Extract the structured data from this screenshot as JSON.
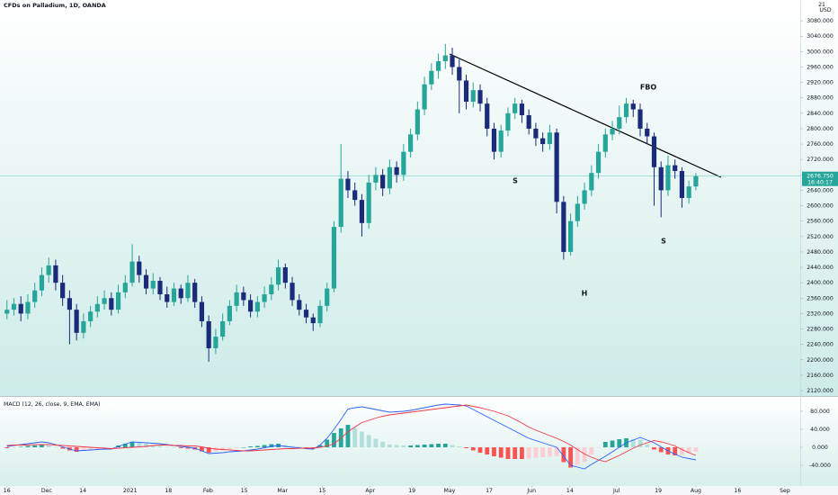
{
  "chart_data": {
    "type": "candlestick",
    "title": "CFDs on Palladium, 1D, OANDA",
    "currency": "USD",
    "currency_badge": "21",
    "up_color": "#26a69a",
    "down_color": "#1a2b7a",
    "ylim": [
      2106,
      3134
    ],
    "yticks": [
      {
        "value": 2120,
        "label": "2120.000"
      },
      {
        "value": 2160,
        "label": "2160.000"
      },
      {
        "value": 2200,
        "label": "2200.000"
      },
      {
        "value": 2240,
        "label": "2240.000"
      },
      {
        "value": 2280,
        "label": "2280.000"
      },
      {
        "value": 2320,
        "label": "2320.000"
      },
      {
        "value": 2360,
        "label": "2360.000"
      },
      {
        "value": 2400,
        "label": "2400.000"
      },
      {
        "value": 2440,
        "label": "2440.000"
      },
      {
        "value": 2480,
        "label": "2480.000"
      },
      {
        "value": 2520,
        "label": "2520.000"
      },
      {
        "value": 2560,
        "label": "2560.000"
      },
      {
        "value": 2600,
        "label": "2600.000"
      },
      {
        "value": 2640,
        "label": "2640.000"
      },
      {
        "value": 2680,
        "label": "2680.000"
      },
      {
        "value": 2720,
        "label": "2720.000"
      },
      {
        "value": 2760,
        "label": "2760.000"
      },
      {
        "value": 2800,
        "label": "2800.000"
      },
      {
        "value": 2840,
        "label": "2840.000"
      },
      {
        "value": 2880,
        "label": "2880.000"
      },
      {
        "value": 2920,
        "label": "2920.000"
      },
      {
        "value": 2960,
        "label": "2960.000"
      },
      {
        "value": 3000,
        "label": "3000.000"
      },
      {
        "value": 3040,
        "label": "3040.000"
      },
      {
        "value": 3080,
        "label": "3080.000"
      }
    ],
    "xlim": [
      -1,
      114
    ],
    "xticks": [
      {
        "value": 0,
        "label": "16"
      },
      {
        "value": 5.7,
        "label": "Dec"
      },
      {
        "value": 10.9,
        "label": "14"
      },
      {
        "value": 17.7,
        "label": "2021"
      },
      {
        "value": 23.2,
        "label": "18"
      },
      {
        "value": 28.9,
        "label": "Feb"
      },
      {
        "value": 34.1,
        "label": "15"
      },
      {
        "value": 39.6,
        "label": "Mar"
      },
      {
        "value": 45.3,
        "label": "15"
      },
      {
        "value": 52.2,
        "label": "Apr"
      },
      {
        "value": 58.2,
        "label": "19"
      },
      {
        "value": 63.6,
        "label": "May"
      },
      {
        "value": 69.3,
        "label": "17"
      },
      {
        "value": 75.4,
        "label": "Jun"
      },
      {
        "value": 80.9,
        "label": "14"
      },
      {
        "value": 87.6,
        "label": "Jul"
      },
      {
        "value": 93.6,
        "label": "19"
      },
      {
        "value": 99,
        "label": "Aug"
      },
      {
        "value": 105,
        "label": "16"
      },
      {
        "value": 111.8,
        "label": "Sep"
      }
    ],
    "last_price": {
      "value": 2676.75,
      "label": "2676.750"
    },
    "countdown": "16:40:17",
    "annotations": [
      "S",
      "H",
      "S",
      "FBO"
    ],
    "candles": [
      [
        2320,
        2355,
        2305,
        2330
      ],
      [
        2330,
        2360,
        2315,
        2345
      ],
      [
        2345,
        2365,
        2300,
        2320
      ],
      [
        2320,
        2370,
        2305,
        2350
      ],
      [
        2350,
        2400,
        2335,
        2380
      ],
      [
        2380,
        2440,
        2365,
        2420
      ],
      [
        2420,
        2465,
        2400,
        2445
      ],
      [
        2445,
        2460,
        2380,
        2400
      ],
      [
        2400,
        2420,
        2340,
        2360
      ],
      [
        2360,
        2380,
        2240,
        2330
      ],
      [
        2330,
        2345,
        2250,
        2270
      ],
      [
        2270,
        2320,
        2255,
        2300
      ],
      [
        2300,
        2340,
        2285,
        2325
      ],
      [
        2325,
        2365,
        2310,
        2345
      ],
      [
        2345,
        2380,
        2330,
        2360
      ],
      [
        2360,
        2375,
        2315,
        2330
      ],
      [
        2330,
        2395,
        2320,
        2375
      ],
      [
        2375,
        2420,
        2360,
        2400
      ],
      [
        2400,
        2500,
        2390,
        2455
      ],
      [
        2455,
        2470,
        2400,
        2420
      ],
      [
        2420,
        2435,
        2370,
        2385
      ],
      [
        2385,
        2425,
        2370,
        2405
      ],
      [
        2405,
        2415,
        2355,
        2370
      ],
      [
        2370,
        2390,
        2335,
        2350
      ],
      [
        2350,
        2400,
        2340,
        2385
      ],
      [
        2385,
        2395,
        2345,
        2360
      ],
      [
        2360,
        2420,
        2350,
        2400
      ],
      [
        2400,
        2410,
        2335,
        2350
      ],
      [
        2350,
        2365,
        2285,
        2300
      ],
      [
        2300,
        2315,
        2195,
        2230
      ],
      [
        2230,
        2280,
        2215,
        2260
      ],
      [
        2260,
        2320,
        2250,
        2300
      ],
      [
        2300,
        2355,
        2290,
        2340
      ],
      [
        2340,
        2395,
        2325,
        2375
      ],
      [
        2375,
        2390,
        2340,
        2355
      ],
      [
        2355,
        2370,
        2310,
        2325
      ],
      [
        2325,
        2365,
        2310,
        2350
      ],
      [
        2350,
        2390,
        2335,
        2370
      ],
      [
        2370,
        2415,
        2355,
        2395
      ],
      [
        2395,
        2460,
        2380,
        2440
      ],
      [
        2440,
        2450,
        2385,
        2400
      ],
      [
        2400,
        2415,
        2340,
        2355
      ],
      [
        2355,
        2370,
        2315,
        2330
      ],
      [
        2330,
        2345,
        2295,
        2310
      ],
      [
        2310,
        2320,
        2275,
        2295
      ],
      [
        2295,
        2355,
        2285,
        2340
      ],
      [
        2340,
        2400,
        2325,
        2385
      ],
      [
        2385,
        2560,
        2375,
        2545
      ],
      [
        2545,
        2760,
        2530,
        2670
      ],
      [
        2670,
        2690,
        2620,
        2640
      ],
      [
        2640,
        2660,
        2600,
        2615
      ],
      [
        2615,
        2630,
        2520,
        2555
      ],
      [
        2555,
        2680,
        2540,
        2660
      ],
      [
        2660,
        2700,
        2640,
        2680
      ],
      [
        2680,
        2695,
        2625,
        2645
      ],
      [
        2645,
        2720,
        2630,
        2700
      ],
      [
        2700,
        2715,
        2660,
        2680
      ],
      [
        2680,
        2760,
        2665,
        2740
      ],
      [
        2740,
        2800,
        2725,
        2785
      ],
      [
        2785,
        2870,
        2770,
        2850
      ],
      [
        2850,
        2935,
        2835,
        2915
      ],
      [
        2915,
        2970,
        2900,
        2950
      ],
      [
        2950,
        2995,
        2930,
        2975
      ],
      [
        2975,
        3020,
        2955,
        2990
      ],
      [
        2990,
        3010,
        2940,
        2960
      ],
      [
        2960,
        2980,
        2840,
        2925
      ],
      [
        2925,
        2940,
        2850,
        2870
      ],
      [
        2870,
        2920,
        2855,
        2900
      ],
      [
        2900,
        2915,
        2845,
        2865
      ],
      [
        2865,
        2880,
        2780,
        2800
      ],
      [
        2800,
        2815,
        2720,
        2740
      ],
      [
        2740,
        2810,
        2725,
        2795
      ],
      [
        2795,
        2855,
        2780,
        2840
      ],
      [
        2840,
        2880,
        2825,
        2865
      ],
      [
        2865,
        2875,
        2815,
        2835
      ],
      [
        2835,
        2850,
        2785,
        2800
      ],
      [
        2800,
        2815,
        2755,
        2775
      ],
      [
        2775,
        2790,
        2740,
        2760
      ],
      [
        2760,
        2810,
        2745,
        2790
      ],
      [
        2790,
        2800,
        2580,
        2610
      ],
      [
        2610,
        2625,
        2460,
        2480
      ],
      [
        2480,
        2580,
        2470,
        2560
      ],
      [
        2560,
        2625,
        2545,
        2605
      ],
      [
        2605,
        2660,
        2590,
        2640
      ],
      [
        2640,
        2705,
        2625,
        2685
      ],
      [
        2685,
        2760,
        2670,
        2740
      ],
      [
        2740,
        2800,
        2725,
        2785
      ],
      [
        2785,
        2820,
        2770,
        2800
      ],
      [
        2800,
        2860,
        2785,
        2830
      ],
      [
        2830,
        2880,
        2815,
        2865
      ],
      [
        2865,
        2875,
        2830,
        2850
      ],
      [
        2850,
        2865,
        2780,
        2800
      ],
      [
        2800,
        2815,
        2760,
        2780
      ],
      [
        2780,
        2790,
        2600,
        2700
      ],
      [
        2700,
        2715,
        2570,
        2640
      ],
      [
        2640,
        2730,
        2625,
        2705
      ],
      [
        2705,
        2720,
        2670,
        2690
      ],
      [
        2690,
        2700,
        2595,
        2620
      ],
      [
        2620,
        2665,
        2605,
        2650
      ],
      [
        2650,
        2685,
        2640,
        2677
      ]
    ],
    "indicator": {
      "title": "MACD (12, 26, close, 9, EMA, EMA)",
      "ylim": [
        -82,
        112
      ],
      "yticks": [
        {
          "value": -40,
          "label": "-40.000"
        },
        {
          "value": 0,
          "label": "0.000"
        },
        {
          "value": 40,
          "label": "40.000"
        },
        {
          "value": 80,
          "label": "80.000"
        }
      ],
      "hist_colors": [
        "#26a69a",
        "#b2dfdb",
        "#ff5252",
        "#ffcdd2"
      ],
      "histogram": [
        -2,
        -1,
        1,
        3,
        4,
        6,
        4,
        1,
        -3,
        -7,
        -10,
        -8,
        -6,
        -4,
        -2,
        -1,
        4,
        8,
        12,
        10,
        8,
        5,
        3,
        1,
        0,
        -2,
        -3,
        -5,
        -9,
        -12,
        -9,
        -7,
        -4,
        -2,
        0,
        2,
        3,
        5,
        7,
        8,
        5,
        3,
        1,
        -1,
        -2,
        5,
        17,
        32,
        42,
        50,
        43,
        35,
        27,
        19,
        12,
        6,
        5,
        4,
        4,
        5,
        6,
        7,
        8,
        8,
        5,
        2,
        -2,
        -7,
        -12,
        -16,
        -20,
        -23,
        -26,
        -26,
        -26,
        -25,
        -23,
        -22,
        -21,
        -20,
        -33,
        -45,
        -39,
        -33,
        -16,
        -1,
        12,
        15,
        18,
        20,
        18,
        17,
        6,
        -5,
        -11,
        -16,
        -18,
        -17,
        -13,
        -10
      ],
      "series": [
        {
          "color": "#2962ff",
          "values": [
            2,
            4,
            6,
            8,
            10,
            12,
            10,
            6,
            1,
            -4,
            -8,
            -7,
            -6,
            -5,
            -4,
            -4,
            2,
            7,
            12,
            11,
            10,
            9,
            8,
            6,
            4,
            2,
            0,
            -2,
            -8,
            -14,
            -13,
            -12,
            -10,
            -9,
            -8,
            -6,
            -4,
            -1,
            2,
            4,
            2,
            0,
            -1,
            -3,
            -4,
            5,
            20,
            40,
            62,
            85,
            88,
            90,
            87,
            84,
            81,
            78,
            79,
            80,
            82,
            85,
            88,
            91,
            94,
            96,
            95,
            94,
            92,
            84,
            76,
            68,
            60,
            52,
            44,
            36,
            28,
            20,
            15,
            10,
            5,
            0,
            -20,
            -40,
            -44,
            -48,
            -38,
            -29,
            -20,
            -10,
            0,
            10,
            16,
            22,
            16,
            10,
            1,
            -8,
            -15,
            -22,
            -25,
            -28
          ]
        },
        {
          "color": "#f23645",
          "values": [
            4,
            5,
            5,
            5,
            6,
            6,
            6,
            5,
            4,
            3,
            2,
            1,
            0,
            -1,
            -2,
            -3,
            -2,
            -1,
            0,
            1,
            2,
            4,
            5,
            5,
            4,
            4,
            3,
            3,
            1,
            -2,
            -4,
            -5,
            -6,
            -7,
            -8,
            -8,
            -7,
            -6,
            -5,
            -4,
            -3,
            -3,
            -2,
            -2,
            -2,
            0,
            3,
            8,
            20,
            35,
            45,
            55,
            60,
            65,
            69,
            72,
            74,
            76,
            78,
            80,
            82,
            84,
            86,
            88,
            90,
            92,
            94,
            91,
            88,
            84,
            80,
            75,
            70,
            62,
            54,
            45,
            38,
            32,
            26,
            20,
            13,
            5,
            -5,
            -15,
            -22,
            -28,
            -32,
            -25,
            -18,
            -10,
            -2,
            5,
            10,
            15,
            12,
            8,
            3,
            -5,
            -12,
            -18
          ]
        }
      ]
    }
  }
}
